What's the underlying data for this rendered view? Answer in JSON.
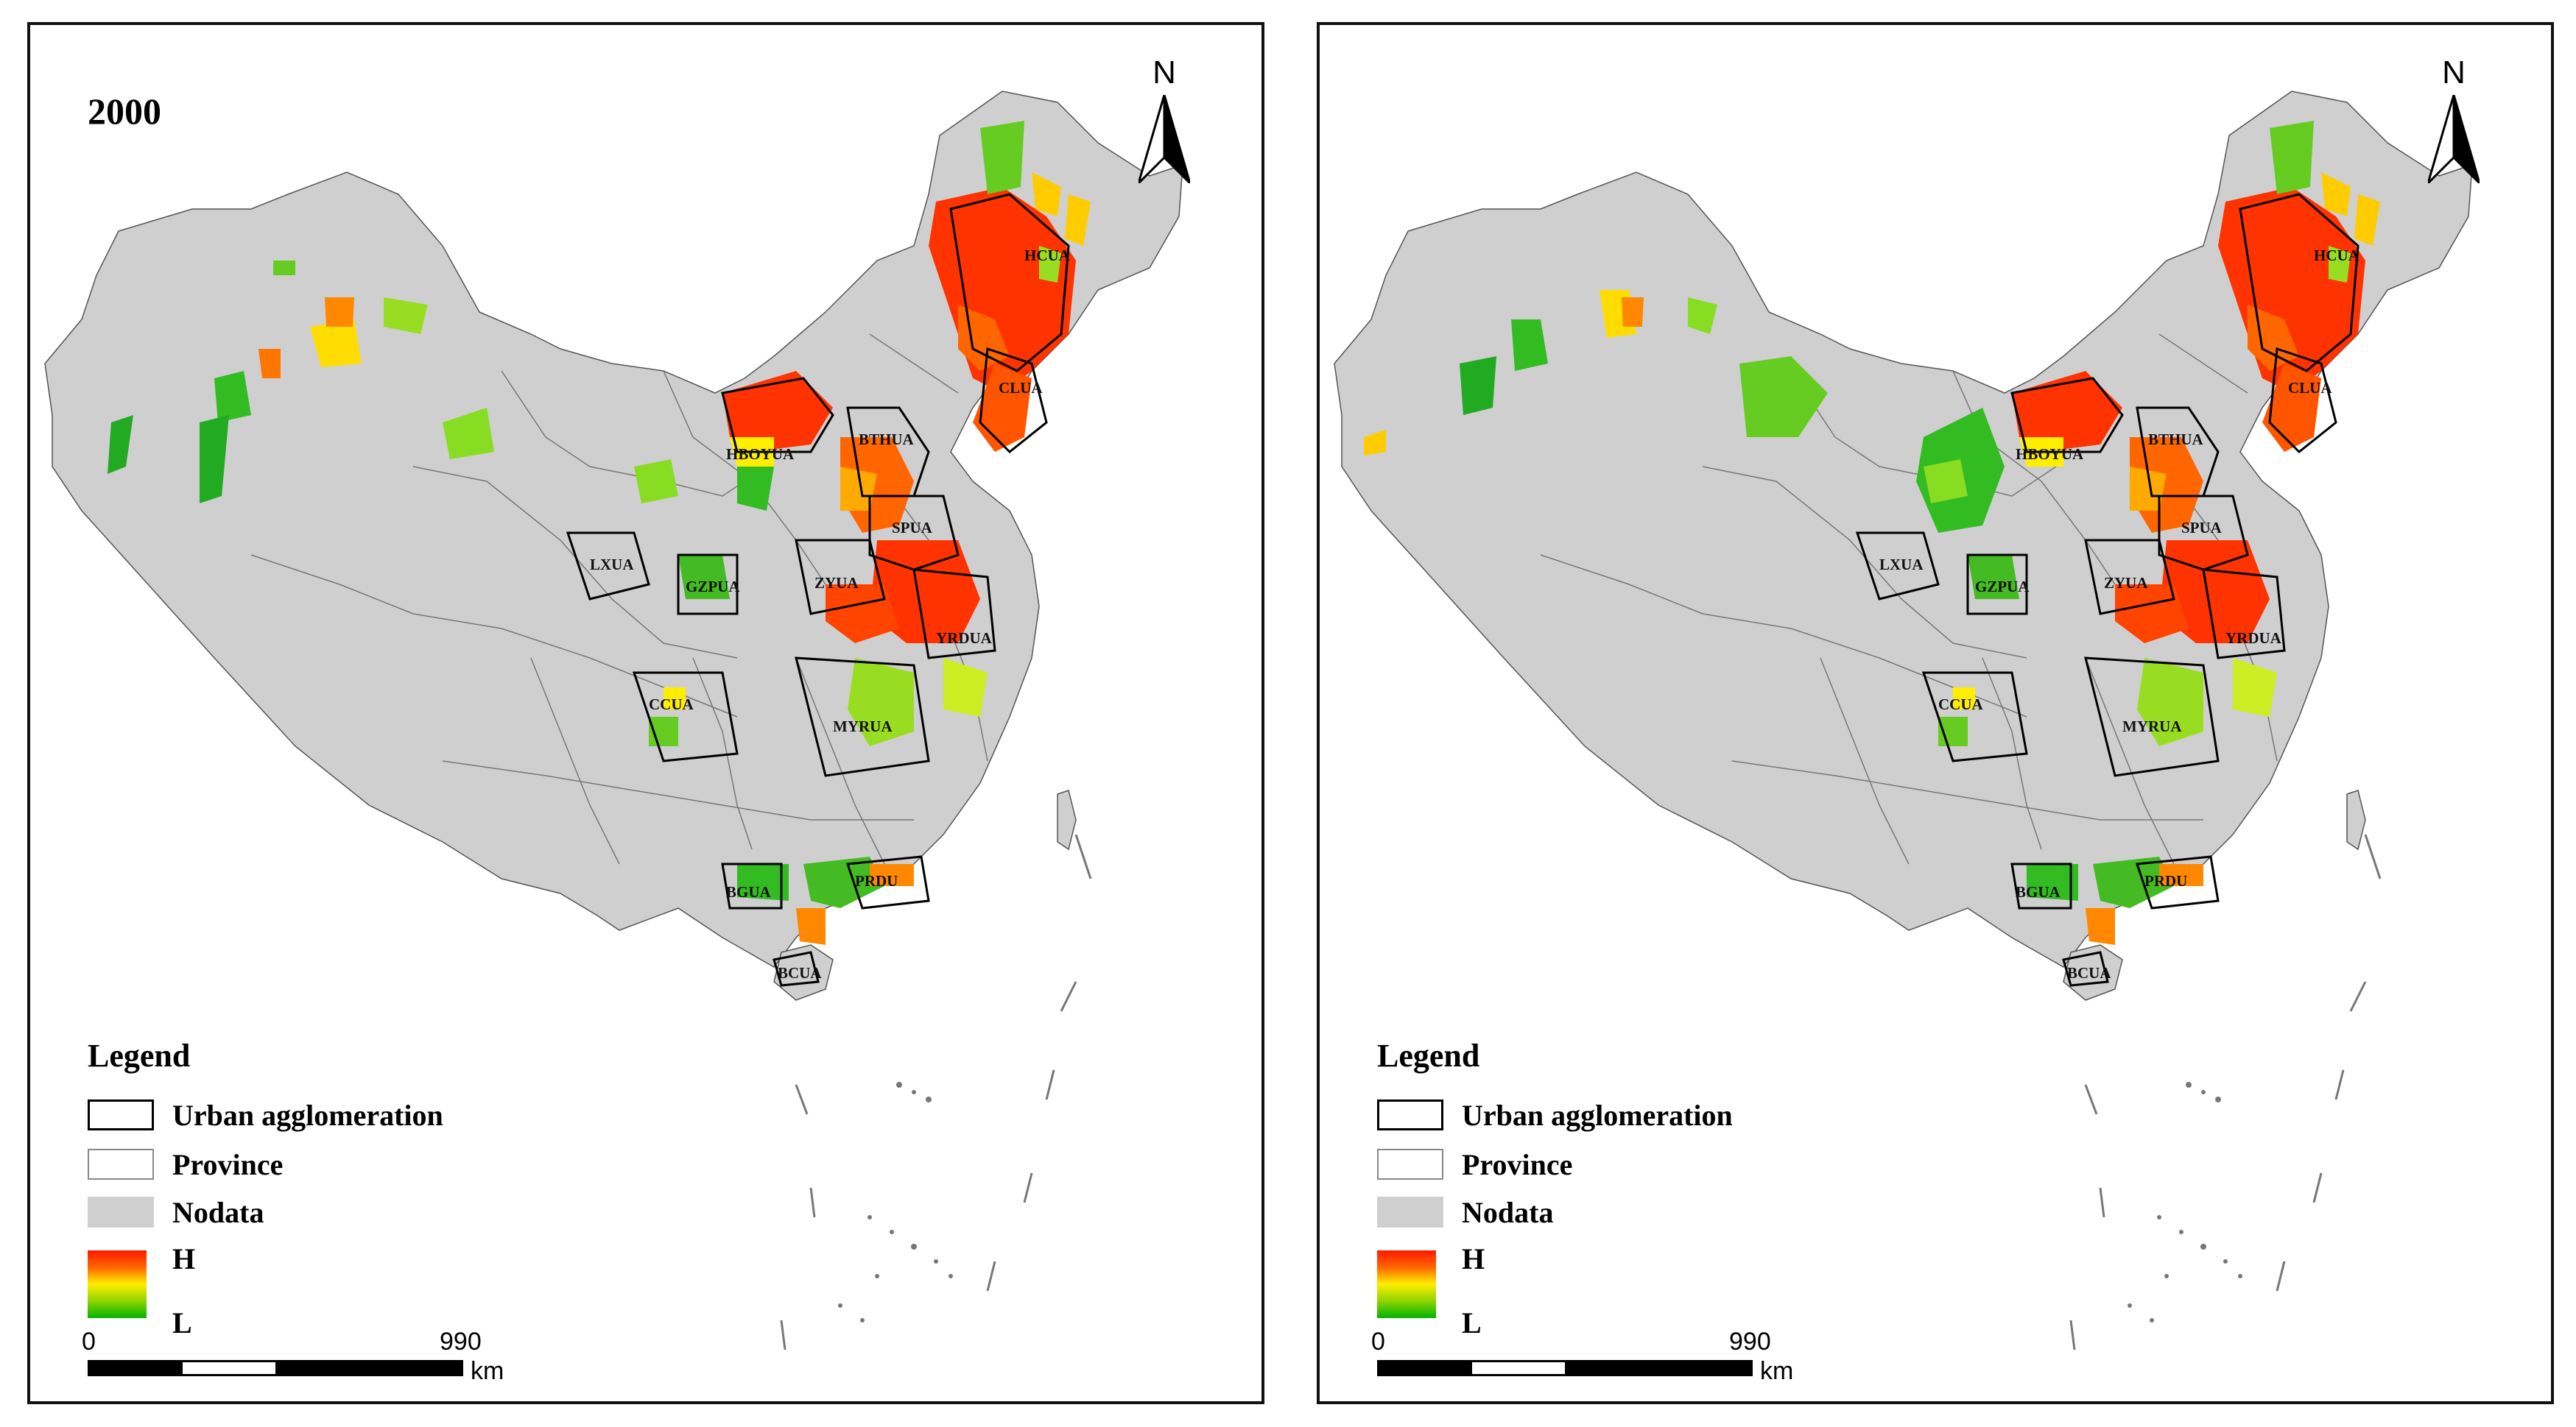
{
  "panels": [
    {
      "year": "2000",
      "north": "N",
      "legend": {
        "title": "Legend",
        "items": [
          {
            "label": "Urban agglomeration"
          },
          {
            "label": "Province"
          },
          {
            "label": "Nodata"
          }
        ],
        "gradient_high": "H",
        "gradient_low": "L"
      },
      "scale": {
        "start": "0",
        "end": "990",
        "unit": "km"
      }
    },
    {
      "year": "",
      "north": "N",
      "legend": {
        "title": "Legend",
        "items": [
          {
            "label": "Urban agglomeration"
          },
          {
            "label": "Province"
          },
          {
            "label": "Nodata"
          }
        ],
        "gradient_high": "H",
        "gradient_low": "L"
      },
      "scale": {
        "start": "0",
        "end": "990",
        "unit": "km"
      }
    }
  ],
  "ua_labels": [
    "HCUA",
    "CLUA",
    "BTHUA",
    "HBOYUA",
    "SPUA",
    "LXUA",
    "GZPUA",
    "ZYUA",
    "YRDUA",
    "CCUA",
    "MYRUA",
    "PRDU",
    "BGUA",
    "BCUA"
  ],
  "colors": {
    "high": "#ff1a00",
    "mid": "#ffee00",
    "low": "#00b300",
    "nodata": "#cfcfcf"
  }
}
